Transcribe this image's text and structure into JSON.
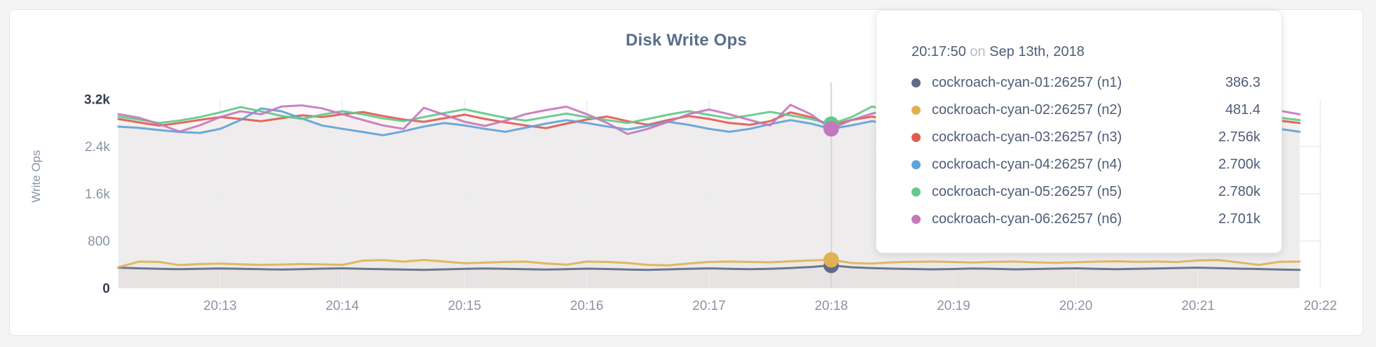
{
  "title": "Disk Write Ops",
  "tooltip": {
    "time": "20:17:50",
    "conjunction": "on",
    "date": "Sep 13th, 2018",
    "rows": [
      {
        "label": "cockroach-cyan-01:26257 (n1)",
        "value": "386.3",
        "color": "#5f6c87"
      },
      {
        "label": "cockroach-cyan-02:26257 (n2)",
        "value": "481.4",
        "color": "#e0b254"
      },
      {
        "label": "cockroach-cyan-03:26257 (n3)",
        "value": "2.756k",
        "color": "#e15b4e"
      },
      {
        "label": "cockroach-cyan-04:26257 (n4)",
        "value": "2.700k",
        "color": "#5fa3d8"
      },
      {
        "label": "cockroach-cyan-05:26257 (n5)",
        "value": "2.780k",
        "color": "#62c98c"
      },
      {
        "label": "cockroach-cyan-06:26257 (n6)",
        "value": "2.701k",
        "color": "#c678bd"
      }
    ]
  },
  "chart_data": {
    "type": "line",
    "title": "Disk Write Ops",
    "xlabel": "",
    "ylabel": "Write Ops",
    "ylim": [
      0,
      3200
    ],
    "grid": true,
    "x_start_time": "20:12:10",
    "x_step_seconds": 10,
    "hover_index": 35,
    "hover_time": "20:17:50",
    "xticks": [
      "20:13",
      "20:14",
      "20:15",
      "20:16",
      "20:17",
      "20:18",
      "20:19",
      "20:20",
      "20:21",
      "20:22"
    ],
    "yticks": [
      {
        "value": 0,
        "label": "0",
        "emphasis": true
      },
      {
        "value": 800,
        "label": "800",
        "emphasis": false
      },
      {
        "value": 1600,
        "label": "1.6k",
        "emphasis": false
      },
      {
        "value": 2400,
        "label": "2.4k",
        "emphasis": false
      },
      {
        "value": 3200,
        "label": "3.2k",
        "emphasis": true
      }
    ],
    "series": [
      {
        "name": "cockroach-cyan-01:26257 (n1)",
        "color": "#5f6c87",
        "hover_value": 386.3,
        "values": [
          348,
          338,
          330,
          322,
          328,
          334,
          330,
          322,
          316,
          324,
          332,
          338,
          330,
          324,
          318,
          312,
          320,
          328,
          334,
          328,
          322,
          316,
          324,
          332,
          326,
          318,
          312,
          320,
          328,
          336,
          330,
          324,
          330,
          342,
          360,
          386.3,
          356,
          340,
          332,
          326,
          320,
          326,
          334,
          328,
          320,
          326,
          332,
          338,
          330,
          322,
          328,
          334,
          342,
          348,
          340,
          332,
          326,
          318,
          312
        ]
      },
      {
        "name": "cockroach-cyan-02:26257 (n2)",
        "color": "#e0b254",
        "hover_value": 481.4,
        "values": [
          356,
          452,
          446,
          392,
          410,
          418,
          406,
          396,
          402,
          410,
          404,
          396,
          468,
          476,
          450,
          480,
          452,
          424,
          434,
          446,
          452,
          420,
          400,
          452,
          446,
          428,
          396,
          388,
          420,
          446,
          452,
          446,
          438,
          456,
          470,
          481.4,
          428,
          418,
          438,
          448,
          452,
          444,
          436,
          448,
          452,
          438,
          430,
          440,
          450,
          456,
          448,
          452,
          444,
          470,
          478,
          438,
          396,
          448,
          452
        ]
      },
      {
        "name": "cockroach-cyan-03:26257 (n3)",
        "color": "#e15b4e",
        "hover_value": 2756,
        "values": [
          2868,
          2810,
          2756,
          2800,
          2852,
          2900,
          2868,
          2830,
          2880,
          2930,
          2900,
          2948,
          2986,
          2918,
          2858,
          2820,
          2880,
          2940,
          2868,
          2810,
          2758,
          2712,
          2790,
          2858,
          2908,
          2830,
          2770,
          2850,
          2918,
          2868,
          2800,
          2768,
          2830,
          2980,
          2900,
          2756,
          2850,
          2908,
          2840,
          2780,
          2850,
          2900,
          2820,
          2760,
          2850,
          2918,
          2878,
          2820,
          2770,
          2830,
          2900,
          2850,
          2790,
          2858,
          2918,
          2868,
          2900,
          2840,
          2800
        ]
      },
      {
        "name": "cockroach-cyan-04:26257 (n4)",
        "color": "#5fa3d8",
        "hover_value": 2700,
        "values": [
          2738,
          2718,
          2680,
          2648,
          2631,
          2700,
          2850,
          3046,
          2998,
          2878,
          2758,
          2700,
          2648,
          2592,
          2660,
          2740,
          2800,
          2758,
          2700,
          2650,
          2720,
          2790,
          2848,
          2798,
          2740,
          2690,
          2750,
          2820,
          2768,
          2700,
          2650,
          2700,
          2780,
          2848,
          2790,
          2700,
          2760,
          2830,
          2778,
          2700,
          2640,
          2700,
          2780,
          2840,
          2778,
          2720,
          2760,
          2820,
          2858,
          2798,
          2740,
          2700,
          2760,
          2830,
          2868,
          2808,
          2750,
          2700,
          2650
        ]
      },
      {
        "name": "cockroach-cyan-05:26257 (n5)",
        "color": "#62c98c",
        "hover_value": 2780,
        "values": [
          2910,
          2858,
          2800,
          2840,
          2900,
          2980,
          3068,
          2998,
          2920,
          2868,
          2940,
          3000,
          2948,
          2878,
          2830,
          2900,
          2968,
          3030,
          2958,
          2888,
          2840,
          2900,
          2958,
          2898,
          2848,
          2800,
          2868,
          2940,
          3000,
          2938,
          2878,
          2930,
          2988,
          2928,
          2868,
          2780,
          2900,
          3078,
          3008,
          2928,
          2868,
          2930,
          2988,
          2928,
          2868,
          2908,
          2968,
          3018,
          2958,
          2898,
          2938,
          3000,
          2948,
          2888,
          2930,
          2988,
          2938,
          2888,
          2848
        ]
      },
      {
        "name": "cockroach-cyan-06:26257 (n6)",
        "color": "#c678bd",
        "hover_value": 2701,
        "values": [
          2950,
          2890,
          2780,
          2655,
          2760,
          2900,
          2998,
          2948,
          3078,
          3098,
          3048,
          2948,
          2850,
          2758,
          2700,
          3058,
          2938,
          2820,
          2750,
          2840,
          2950,
          3018,
          3076,
          2948,
          2800,
          2612,
          2700,
          2820,
          2950,
          3028,
          2948,
          2850,
          2758,
          3108,
          2948,
          2701,
          2850,
          2958,
          3038,
          2948,
          2858,
          2918,
          2998,
          2938,
          2858,
          2800,
          2878,
          2958,
          3028,
          2958,
          2878,
          2948,
          3098,
          3038,
          2948,
          2868,
          2938,
          3008,
          2948
        ]
      }
    ]
  },
  "colors": {
    "grid": "#ececf0",
    "hover_line": "#d4d4d4",
    "title": "#5a6e8a",
    "axis_text": "#8a94a6",
    "axis_text_emphasis": "#333d4f",
    "tooltip_text": "#4f5d78",
    "tooltip_muted": "#b9bdc4"
  }
}
